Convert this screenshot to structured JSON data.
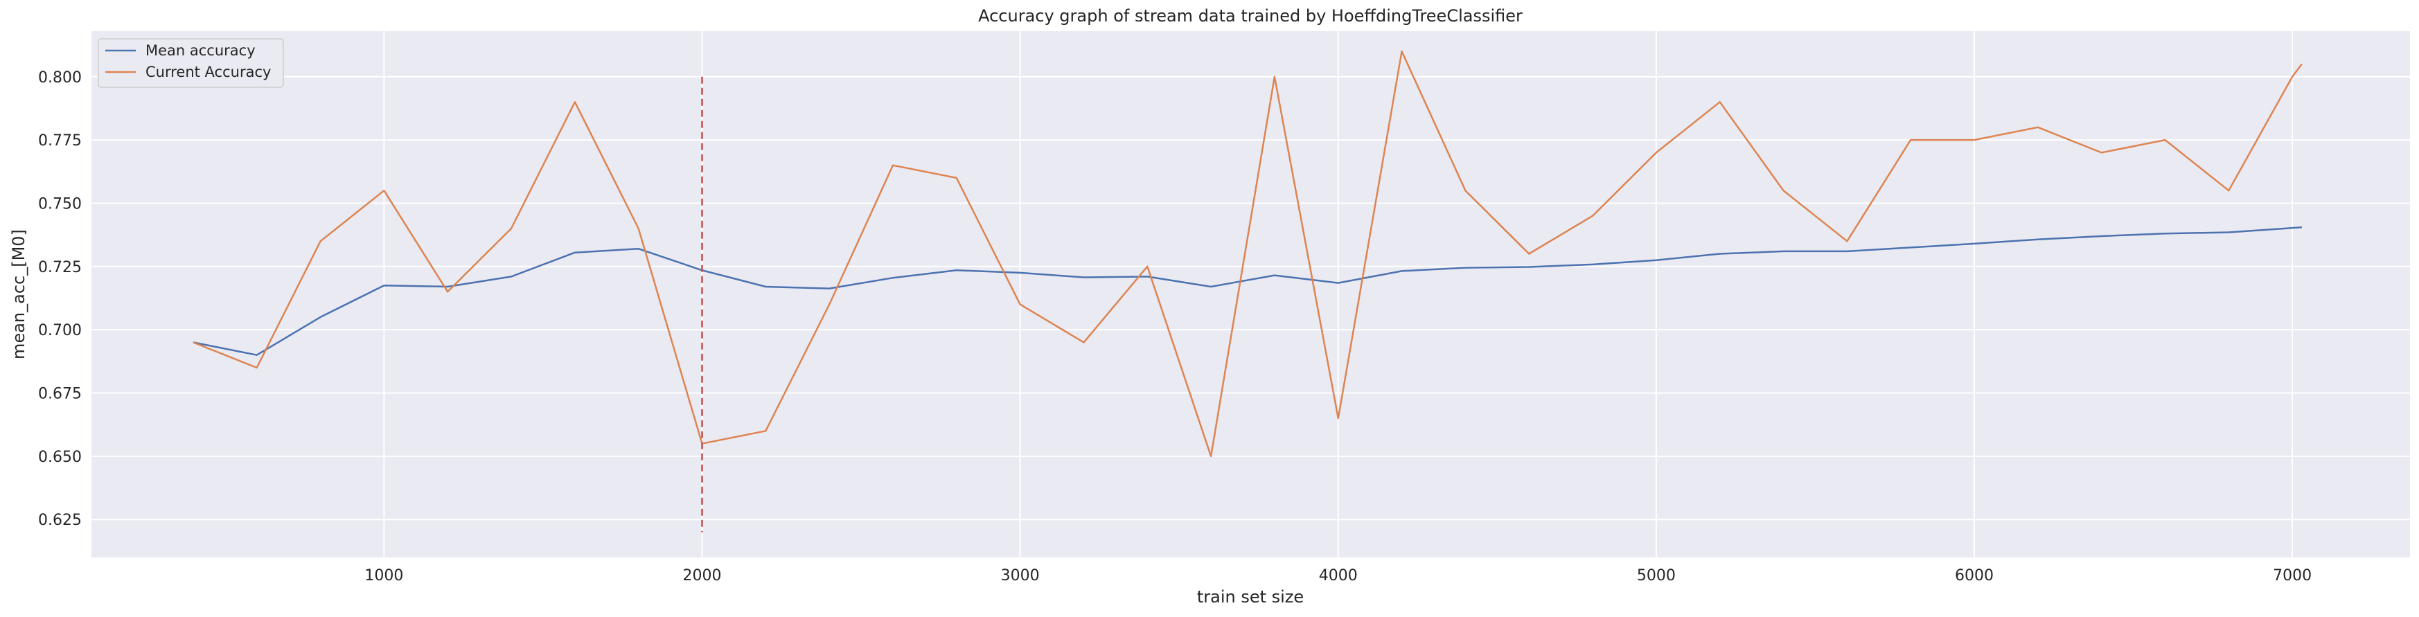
{
  "chart_data": {
    "type": "line",
    "title": "Accuracy graph of stream data trained by HoeffdingTreeClassifier",
    "xlabel": "train set size",
    "ylabel": "mean_acc_[M0]",
    "xlim": [
      80,
      7370
    ],
    "ylim": [
      0.61,
      0.818
    ],
    "xticks": [
      1000,
      2000,
      3000,
      4000,
      5000,
      6000,
      7000
    ],
    "xtick_labels": [
      "1000",
      "2000",
      "3000",
      "4000",
      "5000",
      "6000",
      "7000"
    ],
    "yticks": [
      0.625,
      0.65,
      0.675,
      0.7,
      0.725,
      0.75,
      0.775,
      0.8
    ],
    "ytick_labels": [
      "0.625",
      "0.650",
      "0.675",
      "0.700",
      "0.725",
      "0.750",
      "0.775",
      "0.800"
    ],
    "grid": true,
    "legend_position": "top-left",
    "series": [
      {
        "name": "Mean accuracy",
        "color": "#4c72b0",
        "x": [
          400,
          600,
          800,
          1000,
          1200,
          1400,
          1600,
          1800,
          2000,
          2200,
          2400,
          2600,
          2800,
          3000,
          3200,
          3400,
          3600,
          3800,
          4000,
          4200,
          4400,
          4600,
          4800,
          5000,
          5200,
          5400,
          5600,
          5800,
          6000,
          6200,
          6400,
          6600,
          6800,
          7030
        ],
        "y": [
          0.695,
          0.69,
          0.705,
          0.7175,
          0.717,
          0.721,
          0.7305,
          0.732,
          0.7235,
          0.717,
          0.7163,
          0.7205,
          0.7235,
          0.7225,
          0.7207,
          0.721,
          0.717,
          0.7215,
          0.7185,
          0.7232,
          0.7245,
          0.7248,
          0.7258,
          0.7275,
          0.73,
          0.731,
          0.731,
          0.7325,
          0.734,
          0.7357,
          0.737,
          0.738,
          0.7385,
          0.7405
        ]
      },
      {
        "name": "Current Accuracy",
        "color": "#dd8452",
        "x": [
          400,
          600,
          800,
          1000,
          1200,
          1400,
          1600,
          1800,
          2000,
          2200,
          2400,
          2600,
          2800,
          3000,
          3200,
          3400,
          3600,
          3800,
          4000,
          4200,
          4400,
          4600,
          4800,
          5000,
          5200,
          5400,
          5600,
          5800,
          6000,
          6200,
          6400,
          6600,
          6800,
          7000,
          7030
        ],
        "y": [
          0.695,
          0.685,
          0.735,
          0.755,
          0.715,
          0.74,
          0.79,
          0.74,
          0.655,
          0.66,
          0.71,
          0.765,
          0.76,
          0.71,
          0.695,
          0.725,
          0.65,
          0.8,
          0.665,
          0.81,
          0.755,
          0.73,
          0.745,
          0.77,
          0.79,
          0.755,
          0.735,
          0.775,
          0.775,
          0.78,
          0.77,
          0.775,
          0.755,
          0.8,
          0.805
        ]
      }
    ],
    "annotations": [
      {
        "type": "vline",
        "style": "dashed",
        "color": "#c44e52",
        "x": 2000,
        "y_from": 0.62,
        "y_to": 0.8
      }
    ]
  }
}
